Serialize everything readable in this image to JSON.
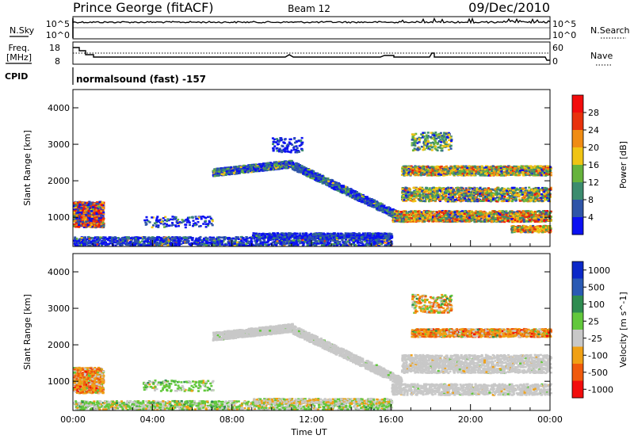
{
  "header": {
    "station": "Prince George (fitACF)",
    "beam": "Beam 12",
    "date": "09/Dec/2010"
  },
  "noise_panel": {
    "left_label": "N.Sky",
    "right_label": "N.Search",
    "top_tick": "10^5",
    "bottom_tick": "10^0"
  },
  "freq_panel": {
    "left_label_1": "Freq.",
    "left_label_2": "[MHz]",
    "right_label": "Nave",
    "left_ticks": [
      "18",
      "8"
    ],
    "right_ticks": [
      "60",
      "0"
    ]
  },
  "cpid": {
    "label": "CPID",
    "value": "normalsound (fast) -157"
  },
  "chart_data": [
    {
      "type": "heatmap",
      "name": "power",
      "ylabel": "Slant Range [km]",
      "ylim": [
        200,
        4500
      ],
      "yticks": [
        "1000",
        "2000",
        "3000",
        "4000"
      ],
      "colorbar_label": "Power [dB]",
      "colorbar_ticks": [
        "4",
        "8",
        "12",
        "16",
        "20",
        "24",
        "28"
      ],
      "colors": [
        "#0b10f2",
        "#2f55a8",
        "#3c8c6e",
        "#66b33c",
        "#f0c414",
        "#f08c14",
        "#e8320c",
        "#f20c0c"
      ]
    },
    {
      "type": "heatmap",
      "name": "velocity",
      "ylabel": "Slant Range [km]",
      "ylim": [
        200,
        4500
      ],
      "yticks": [
        "1000",
        "2000",
        "3000",
        "4000"
      ],
      "colorbar_label": "Velocity [m s^-1]",
      "colorbar_ticks": [
        "1000",
        "500",
        "100",
        "25",
        "-25",
        "-100",
        "-500",
        "-1000"
      ],
      "colors": [
        "#0b28c8",
        "#2a5ab4",
        "#2e8c50",
        "#62c83c",
        "#c8c8c8",
        "#f0a014",
        "#f05a0c",
        "#f20c0c"
      ]
    }
  ],
  "xaxis": {
    "label": "Time UT",
    "ticks": [
      "00:00",
      "04:00",
      "08:00",
      "12:00",
      "16:00",
      "20:00",
      "00:00"
    ]
  }
}
